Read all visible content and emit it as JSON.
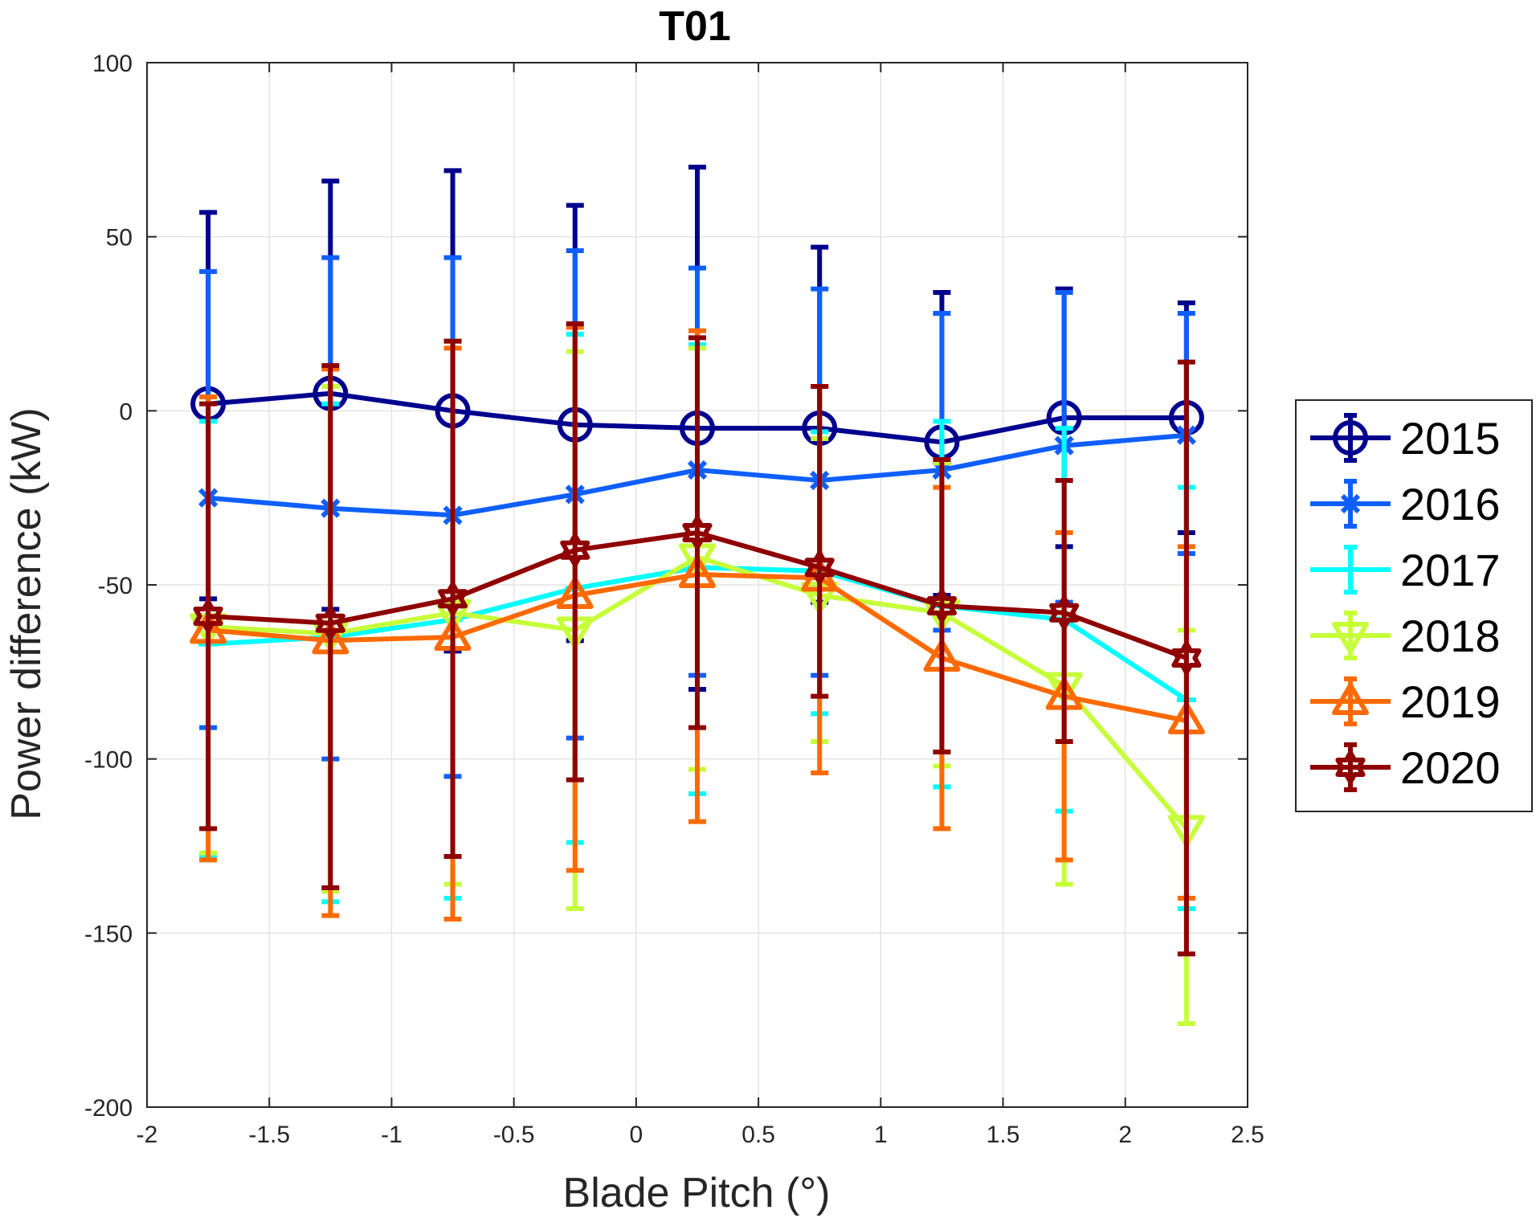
{
  "chart_data": {
    "type": "line",
    "title": "T01",
    "xlabel": "Blade Pitch (°)",
    "ylabel": "Power difference (kW)",
    "xlim": [
      -2,
      2.5
    ],
    "ylim": [
      -200,
      100
    ],
    "xticks": [
      "-2",
      "-1.5",
      "-1",
      "-0.5",
      "0",
      "0.5",
      "1",
      "1.5",
      "2",
      "2.5"
    ],
    "yticks": [
      "100",
      "50",
      "0",
      "-50",
      "-100",
      "-150",
      "-200"
    ],
    "grid": true,
    "legend_position": "outside-right",
    "x": [
      -1.75,
      -1.25,
      -0.75,
      -0.25,
      0.25,
      0.75,
      1.25,
      1.75,
      2.25
    ],
    "series": [
      {
        "name": "2015",
        "color": "#00008f",
        "marker": "circle",
        "y": [
          2,
          5,
          0,
          -4,
          -5,
          -5,
          -9,
          -2,
          -2
        ],
        "upper": [
          57,
          66,
          69,
          59,
          70,
          47,
          34,
          35,
          31
        ],
        "lower": [
          -54,
          -57,
          -69,
          -66,
          -80,
          -55,
          -53,
          -39,
          -35
        ]
      },
      {
        "name": "2016",
        "color": "#0f5fff",
        "marker": "cross",
        "y": [
          -25,
          -28,
          -30,
          -24,
          -17,
          -20,
          -17,
          -10,
          -7
        ],
        "upper": [
          40,
          44,
          44,
          46,
          41,
          35,
          28,
          34,
          28
        ],
        "lower": [
          -91,
          -100,
          -105,
          -94,
          -76,
          -76,
          -63,
          -55,
          -41
        ]
      },
      {
        "name": "2017",
        "color": "#00ffff",
        "marker": "plus",
        "y": [
          -67,
          -65,
          -60,
          -51,
          -45,
          -46,
          -56,
          -60,
          -83
        ],
        "upper": [
          -3,
          2,
          20,
          22,
          19,
          -6,
          -3,
          -5,
          -22
        ],
        "lower": [
          -128,
          -141,
          -140,
          -124,
          -110,
          -87,
          -108,
          -115,
          -143
        ]
      },
      {
        "name": "2018",
        "color": "#c6ff3a",
        "marker": "triangle-down",
        "y": [
          -62,
          -64,
          -58,
          -63,
          -42,
          -53,
          -58,
          -79,
          -120
        ],
        "upper": [
          2,
          7,
          20,
          17,
          18,
          -8,
          -15,
          -20,
          -63
        ],
        "lower": [
          -127,
          -138,
          -136,
          -143,
          -103,
          -95,
          -102,
          -136,
          -176
        ]
      },
      {
        "name": "2019",
        "color": "#ff6a00",
        "marker": "triangle-up",
        "y": [
          -63,
          -66,
          -65,
          -53,
          -47,
          -48,
          -71,
          -82,
          -89
        ],
        "upper": [
          4,
          12,
          18,
          24,
          23,
          7,
          -22,
          -35,
          -39
        ],
        "lower": [
          -129,
          -145,
          -146,
          -132,
          -118,
          -104,
          -120,
          -129,
          -140
        ]
      },
      {
        "name": "2020",
        "color": "#8f0000",
        "marker": "hexagram",
        "y": [
          -59,
          -61,
          -54,
          -40,
          -35,
          -45,
          -56,
          -58,
          -71
        ],
        "upper": [
          2,
          13,
          20,
          25,
          21,
          7,
          -14,
          -20,
          14
        ],
        "lower": [
          -120,
          -137,
          -128,
          -106,
          -91,
          -82,
          -98,
          -95,
          -156
        ]
      }
    ]
  }
}
